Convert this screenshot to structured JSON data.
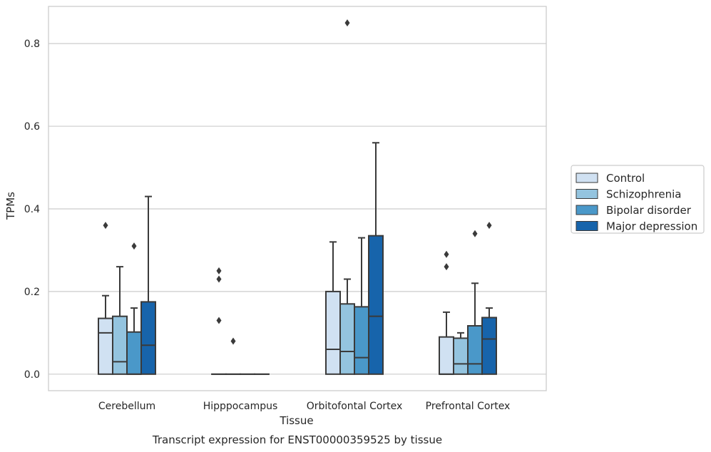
{
  "chart_data": {
    "type": "box",
    "title": "Transcript expression for ENST00000359525 by tissue",
    "xlabel": "Tissue",
    "ylabel": "TPMs",
    "ylim": [
      -0.04,
      0.89
    ],
    "yticks": [
      0.0,
      0.2,
      0.4,
      0.6,
      0.8
    ],
    "ytick_labels": [
      "0.0",
      "0.2",
      "0.4",
      "0.6",
      "0.8"
    ],
    "grid": "horizontal",
    "legend_position": "right",
    "categories": [
      "Cerebellum",
      "Hipppocampus",
      "Orbitofontal Cortex",
      "Prefrontal Cortex"
    ],
    "series": [
      {
        "name": "Control",
        "color": "#d0e1f2",
        "boxes": [
          {
            "q1": 0.0,
            "median": 0.1,
            "q3": 0.135,
            "whisker_low": 0.0,
            "whisker_high": 0.19,
            "outliers": [
              0.36
            ]
          },
          {
            "q1": 0.0,
            "median": 0.0,
            "q3": 0.0,
            "whisker_low": 0.0,
            "whisker_high": 0.0,
            "outliers": [
              0.25,
              0.23,
              0.13
            ]
          },
          {
            "q1": 0.0,
            "median": 0.06,
            "q3": 0.2,
            "whisker_low": 0.0,
            "whisker_high": 0.32,
            "outliers": []
          },
          {
            "q1": 0.0,
            "median": 0.0,
            "q3": 0.09,
            "whisker_low": 0.0,
            "whisker_high": 0.15,
            "outliers": [
              0.29,
              0.26
            ]
          }
        ]
      },
      {
        "name": "Schizophrenia",
        "color": "#94c4df",
        "boxes": [
          {
            "q1": 0.0,
            "median": 0.03,
            "q3": 0.14,
            "whisker_low": 0.0,
            "whisker_high": 0.26,
            "outliers": []
          },
          {
            "q1": 0.0,
            "median": 0.0,
            "q3": 0.0,
            "whisker_low": 0.0,
            "whisker_high": 0.0,
            "outliers": [
              0.08
            ]
          },
          {
            "q1": 0.0,
            "median": 0.055,
            "q3": 0.17,
            "whisker_low": 0.0,
            "whisker_high": 0.23,
            "outliers": [
              0.85
            ]
          },
          {
            "q1": 0.0,
            "median": 0.025,
            "q3": 0.087,
            "whisker_low": 0.0,
            "whisker_high": 0.1,
            "outliers": []
          }
        ]
      },
      {
        "name": "Bipolar disorder",
        "color": "#4a98c9",
        "boxes": [
          {
            "q1": 0.0,
            "median": 0.0,
            "q3": 0.102,
            "whisker_low": 0.0,
            "whisker_high": 0.16,
            "outliers": [
              0.31
            ]
          },
          {
            "q1": 0.0,
            "median": 0.0,
            "q3": 0.0,
            "whisker_low": 0.0,
            "whisker_high": 0.0,
            "outliers": []
          },
          {
            "q1": 0.0,
            "median": 0.04,
            "q3": 0.163,
            "whisker_low": 0.0,
            "whisker_high": 0.33,
            "outliers": []
          },
          {
            "q1": 0.0,
            "median": 0.025,
            "q3": 0.117,
            "whisker_low": 0.0,
            "whisker_high": 0.22,
            "outliers": [
              0.34
            ]
          }
        ]
      },
      {
        "name": "Major depression",
        "color": "#1764ab",
        "boxes": [
          {
            "q1": 0.0,
            "median": 0.07,
            "q3": 0.175,
            "whisker_low": 0.0,
            "whisker_high": 0.43,
            "outliers": []
          },
          {
            "q1": 0.0,
            "median": 0.0,
            "q3": 0.0,
            "whisker_low": 0.0,
            "whisker_high": 0.0,
            "outliers": []
          },
          {
            "q1": 0.0,
            "median": 0.14,
            "q3": 0.335,
            "whisker_low": 0.0,
            "whisker_high": 0.56,
            "outliers": []
          },
          {
            "q1": 0.0,
            "median": 0.085,
            "q3": 0.137,
            "whisker_low": 0.0,
            "whisker_high": 0.16,
            "outliers": [
              0.36
            ]
          }
        ]
      }
    ]
  }
}
